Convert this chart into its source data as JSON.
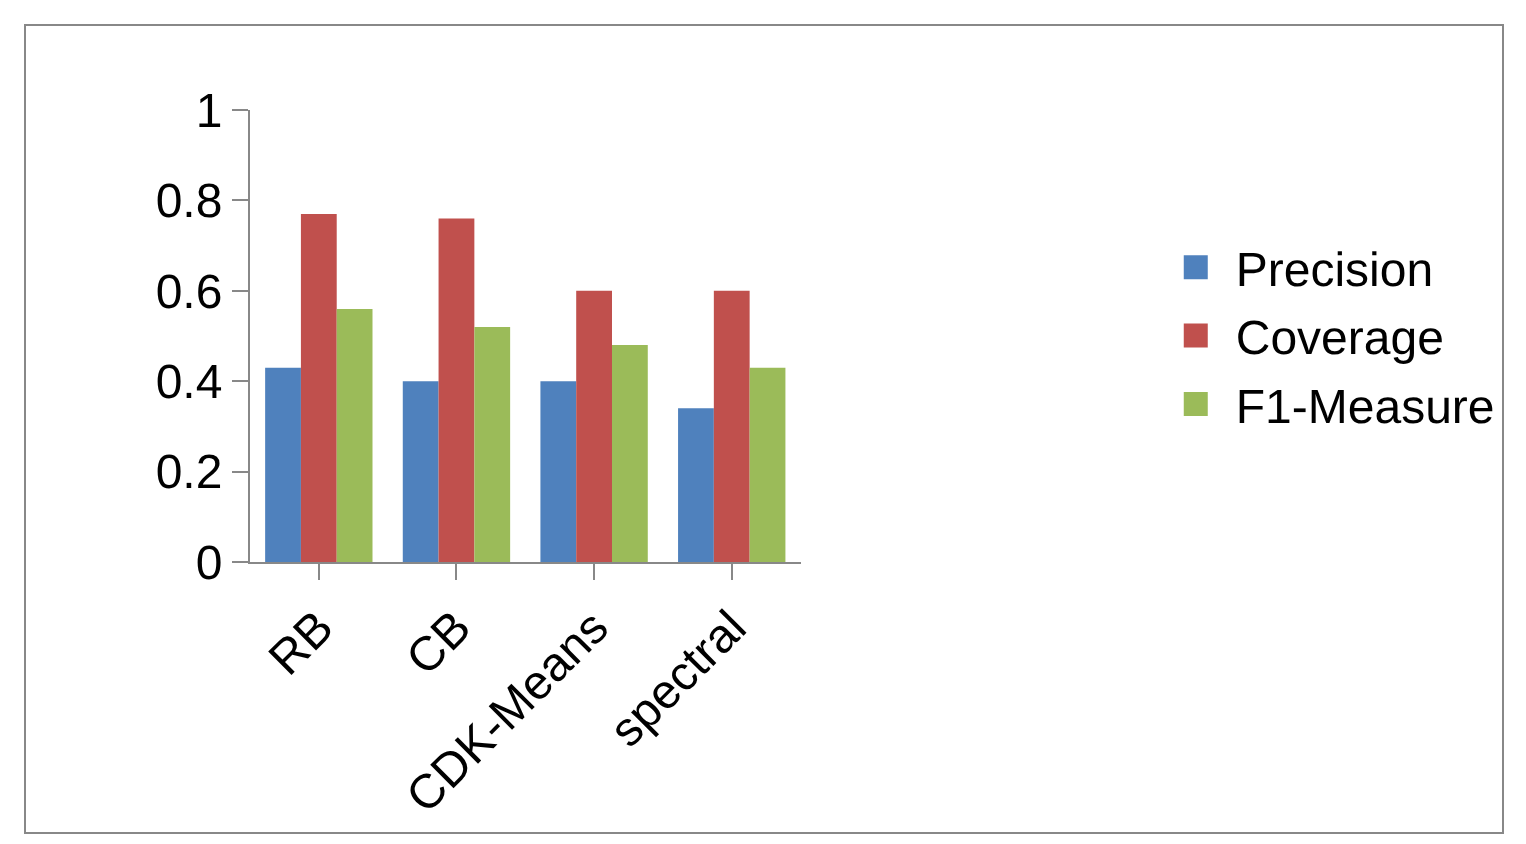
{
  "chart_data": {
    "type": "bar",
    "categories": [
      "RB",
      "CB",
      "CDK-Means",
      "spectral"
    ],
    "series": [
      {
        "name": "Precision",
        "color": "#4f81bd",
        "values": [
          0.43,
          0.4,
          0.4,
          0.34
        ]
      },
      {
        "name": "Coverage",
        "color": "#c0504d",
        "values": [
          0.77,
          0.76,
          0.6,
          0.6
        ]
      },
      {
        "name": "F1-Measure",
        "color": "#9bbb59",
        "values": [
          0.56,
          0.52,
          0.48,
          0.43
        ]
      }
    ],
    "ylim": [
      0,
      1
    ],
    "yticks": [
      0,
      0.2,
      0.4,
      0.6,
      0.8,
      1
    ],
    "grid": false,
    "legend": "right"
  }
}
